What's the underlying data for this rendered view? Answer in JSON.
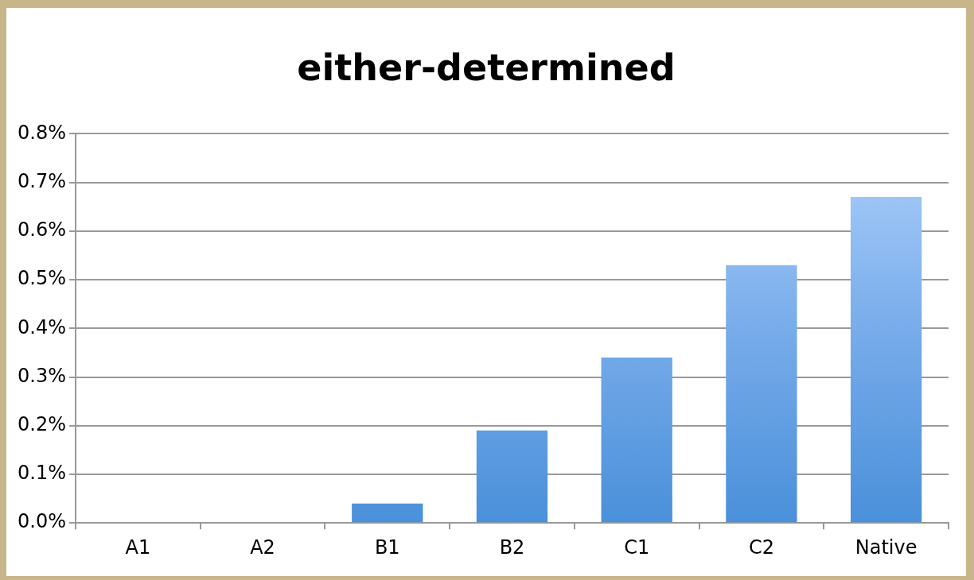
{
  "chart_data": {
    "type": "bar",
    "title": "either-determined",
    "categories": [
      "A1",
      "A2",
      "B1",
      "B2",
      "C1",
      "C2",
      "Native"
    ],
    "values": [
      0,
      0,
      0.04,
      0.19,
      0.34,
      0.53,
      0.67
    ],
    "color": "#78acea",
    "ylim": [
      0,
      0.8
    ],
    "yticks": [
      {
        "value": 0,
        "label": "0.0%"
      },
      {
        "value": 0.1,
        "label": "0.1%"
      },
      {
        "value": 0.2,
        "label": "0.2%"
      },
      {
        "value": 0.3,
        "label": "0.3%"
      },
      {
        "value": 0.4,
        "label": "0.4%"
      },
      {
        "value": 0.5,
        "label": "0.5%"
      },
      {
        "value": 0.6,
        "label": "0.6%"
      },
      {
        "value": 0.7,
        "label": "0.7%"
      },
      {
        "value": 0.8,
        "label": "0.8%"
      }
    ],
    "grid": "y",
    "legend": false
  }
}
